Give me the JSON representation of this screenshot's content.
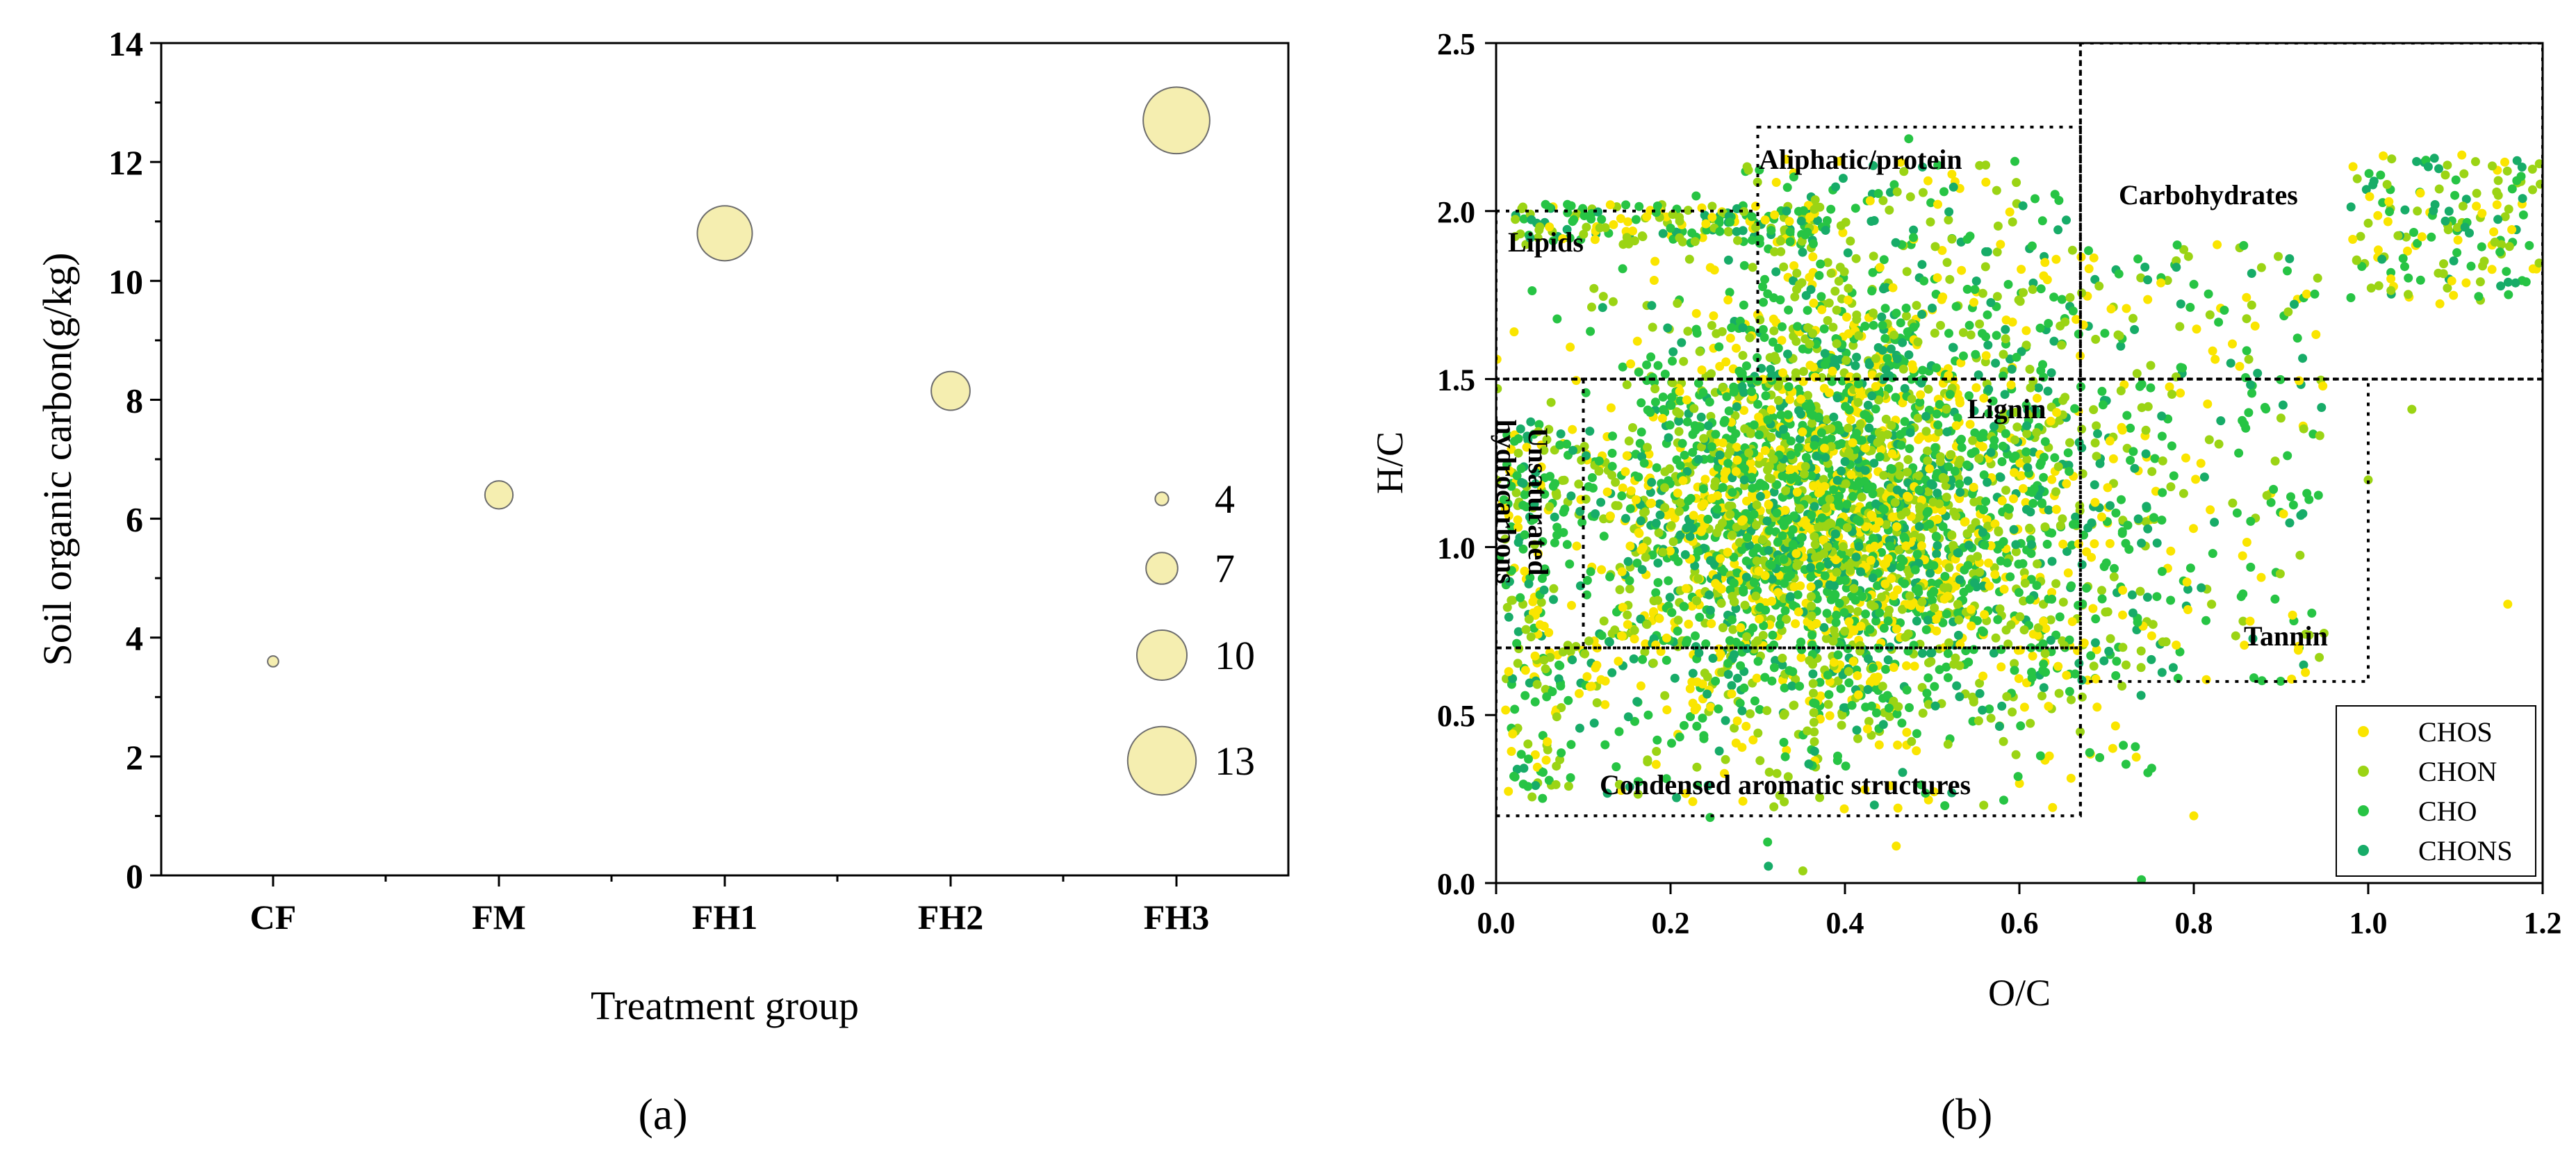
{
  "chart_data": [
    {
      "type": "bubble",
      "panel_label": "(a)",
      "xlabel": "Treatment group",
      "ylabel": "Soil organic carbon(g/kg)",
      "categories": [
        "CF",
        "FM",
        "FH1",
        "FH2",
        "FH3"
      ],
      "values": [
        3.6,
        6.4,
        10.8,
        8.15,
        12.7
      ],
      "ylim": [
        0,
        14
      ],
      "yticks": [
        "0",
        "2",
        "4",
        "6",
        "8",
        "10",
        "12",
        "14"
      ],
      "size_legend": [
        {
          "label": "4",
          "value": 4
        },
        {
          "label": "7",
          "value": 7
        },
        {
          "label": "10",
          "value": 10
        },
        {
          "label": "13",
          "value": 13
        }
      ],
      "bubble_color": "#f5eeb0"
    },
    {
      "type": "scatter",
      "panel_label": "(b)",
      "xlabel": "O/C",
      "ylabel": "H/C",
      "xlim": [
        0,
        1.2
      ],
      "ylim": [
        0,
        2.5
      ],
      "xticks": [
        "0.0",
        "0.2",
        "0.4",
        "0.6",
        "0.8",
        "1.0",
        "1.2"
      ],
      "yticks": [
        "0.0",
        "0.5",
        "1.0",
        "1.5",
        "2.0",
        "2.5"
      ],
      "regions": [
        {
          "label": "Lipids",
          "x": [
            0.0,
            0.3
          ],
          "y": [
            1.5,
            2.0
          ]
        },
        {
          "label": "Aliphatic/protein",
          "x": [
            0.3,
            0.67
          ],
          "y": [
            1.5,
            2.25
          ]
        },
        {
          "label": "Carbohydrates",
          "x": [
            0.67,
            1.2
          ],
          "y": [
            1.5,
            2.5
          ]
        },
        {
          "label": "Lignin",
          "x": [
            0.1,
            0.67
          ],
          "y": [
            0.7,
            1.5
          ]
        },
        {
          "label": "Unsaturated hydrocarbons",
          "x": [
            0.0,
            0.1
          ],
          "y": [
            0.7,
            1.5
          ]
        },
        {
          "label": "Tannin",
          "x": [
            0.67,
            1.0
          ],
          "y": [
            0.6,
            1.5
          ]
        },
        {
          "label": "Condensed aromatic structures",
          "x": [
            0.0,
            0.67
          ],
          "y": [
            0.2,
            0.7
          ]
        }
      ],
      "series": [
        {
          "name": "CHOS",
          "color": "#fae500"
        },
        {
          "name": "CHON",
          "color": "#9bd414"
        },
        {
          "name": "CHO",
          "color": "#27c444"
        },
        {
          "name": "CHONS",
          "color": "#17ac68"
        }
      ],
      "legend_position": "bottom-right"
    }
  ]
}
